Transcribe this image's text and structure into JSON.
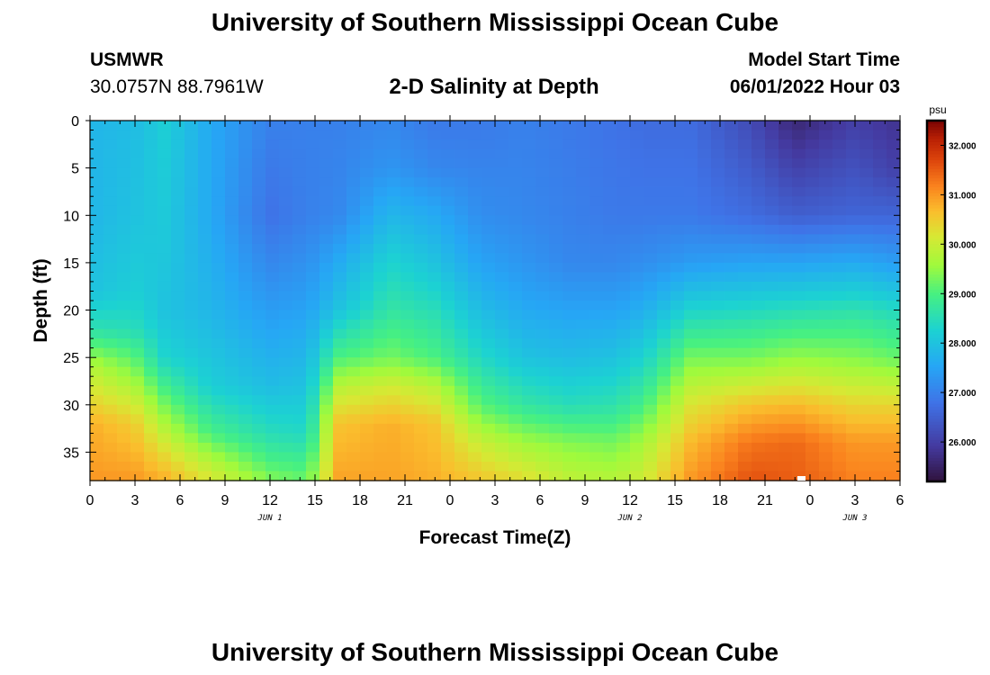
{
  "page": {
    "title": "University of Southern Mississippi Ocean Cube",
    "station": "USMWR",
    "coords": "30.0757N  88.7961W",
    "subtitle": "2-D Salinity at Depth",
    "model_label": "Model Start Time",
    "model_time": "06/01/2022 Hour 03",
    "footer_title": "University of Southern Mississippi Ocean Cube"
  },
  "chart_data": {
    "type": "heatmap",
    "title": "2-D Salinity at Depth",
    "xlabel": "Forecast Time(Z)",
    "ylabel": "Depth (ft)",
    "x_range_hours": [
      0,
      54
    ],
    "y_range": [
      0,
      38
    ],
    "y_inverted": true,
    "x_ticks": [
      {
        "h": 0,
        "label": "0"
      },
      {
        "h": 3,
        "label": "3"
      },
      {
        "h": 6,
        "label": "6"
      },
      {
        "h": 9,
        "label": "9"
      },
      {
        "h": 12,
        "label": "12"
      },
      {
        "h": 15,
        "label": "15"
      },
      {
        "h": 18,
        "label": "18"
      },
      {
        "h": 21,
        "label": "21"
      },
      {
        "h": 24,
        "label": "0"
      },
      {
        "h": 27,
        "label": "3"
      },
      {
        "h": 30,
        "label": "6"
      },
      {
        "h": 33,
        "label": "9"
      },
      {
        "h": 36,
        "label": "12"
      },
      {
        "h": 39,
        "label": "15"
      },
      {
        "h": 42,
        "label": "18"
      },
      {
        "h": 45,
        "label": "21"
      },
      {
        "h": 48,
        "label": "0"
      },
      {
        "h": 51,
        "label": "3"
      },
      {
        "h": 54,
        "label": "6"
      }
    ],
    "date_labels": [
      {
        "h": 12,
        "label": "JUN 1"
      },
      {
        "h": 36,
        "label": "JUN 2"
      },
      {
        "h": 51,
        "label": "JUN 3"
      }
    ],
    "y_ticks": [
      0,
      5,
      10,
      15,
      20,
      25,
      30,
      35
    ],
    "colorbar": {
      "unit": "psu",
      "range": [
        25.2,
        32.5
      ],
      "ticks": [
        26.0,
        27.0,
        28.0,
        29.0,
        30.0,
        31.0,
        32.0
      ],
      "tick_labels": [
        "26.000",
        "27.000",
        "28.000",
        "29.000",
        "30.000",
        "31.000",
        "32.000"
      ]
    },
    "grid_cols": 60,
    "grid_rows": 38,
    "salinity_profiles": [
      {
        "h": 0,
        "depths": [
          0,
          10,
          18,
          22,
          26,
          32,
          38
        ],
        "psu": [
          27.8,
          27.8,
          28.0,
          28.6,
          29.8,
          30.8,
          31.0
        ]
      },
      {
        "h": 3,
        "depths": [
          0,
          10,
          18,
          22,
          26,
          32,
          38
        ],
        "psu": [
          27.9,
          28.0,
          28.2,
          28.5,
          29.3,
          30.5,
          31.0
        ]
      },
      {
        "h": 5,
        "depths": [
          0,
          12,
          20,
          25,
          30,
          35,
          38
        ],
        "psu": [
          28.2,
          28.1,
          28.0,
          28.3,
          29.3,
          30.3,
          30.8
        ]
      },
      {
        "h": 8,
        "depths": [
          0,
          10,
          20,
          28,
          33,
          36,
          38
        ],
        "psu": [
          27.6,
          27.6,
          27.8,
          28.2,
          29.0,
          29.8,
          30.2
        ]
      },
      {
        "h": 12,
        "depths": [
          0,
          10,
          20,
          28,
          33,
          36,
          38
        ],
        "psu": [
          27.0,
          26.8,
          27.4,
          27.9,
          28.5,
          29.0,
          29.4
        ]
      },
      {
        "h": 14.5,
        "depths": [
          0,
          10,
          20,
          28,
          33,
          36,
          38
        ],
        "psu": [
          27.0,
          27.0,
          27.5,
          28.0,
          28.4,
          28.9,
          29.2
        ]
      },
      {
        "h": 16.5,
        "depths": [
          0,
          10,
          15,
          20,
          25,
          28,
          32,
          38
        ],
        "psu": [
          27.0,
          27.1,
          27.6,
          28.0,
          29.0,
          29.8,
          30.6,
          30.9
        ]
      },
      {
        "h": 20,
        "depths": [
          0,
          5,
          10,
          15,
          20,
          25,
          28,
          32,
          38
        ],
        "psu": [
          27.1,
          27.3,
          27.8,
          28.3,
          28.7,
          29.3,
          30.1,
          30.8,
          30.9
        ]
      },
      {
        "h": 23,
        "depths": [
          0,
          5,
          10,
          15,
          20,
          25,
          28,
          32,
          38
        ],
        "psu": [
          26.9,
          27.1,
          27.6,
          28.0,
          28.5,
          29.0,
          29.8,
          30.6,
          30.8
        ]
      },
      {
        "h": 26,
        "depths": [
          0,
          10,
          15,
          20,
          25,
          30,
          34,
          38
        ],
        "psu": [
          26.9,
          27.2,
          27.5,
          27.9,
          28.4,
          29.1,
          30.0,
          30.6
        ]
      },
      {
        "h": 29,
        "depths": [
          0,
          10,
          15,
          20,
          25,
          30,
          34,
          38
        ],
        "psu": [
          27.0,
          27.1,
          27.3,
          27.6,
          28.0,
          28.7,
          29.6,
          30.3
        ]
      },
      {
        "h": 32,
        "depths": [
          0,
          10,
          15,
          20,
          25,
          30,
          34,
          38
        ],
        "psu": [
          26.9,
          27.0,
          27.1,
          27.5,
          27.9,
          28.5,
          29.4,
          29.9
        ]
      },
      {
        "h": 35,
        "depths": [
          0,
          10,
          15,
          20,
          25,
          30,
          34,
          38
        ],
        "psu": [
          26.8,
          26.9,
          27.1,
          27.5,
          28.0,
          28.6,
          29.3,
          29.8
        ]
      },
      {
        "h": 37,
        "depths": [
          0,
          10,
          15,
          20,
          25,
          30,
          34,
          38
        ],
        "psu": [
          26.7,
          26.9,
          27.2,
          27.7,
          28.3,
          29.0,
          29.7,
          30.1
        ]
      },
      {
        "h": 40,
        "depths": [
          0,
          10,
          15,
          20,
          25,
          30,
          34,
          38
        ],
        "psu": [
          26.7,
          26.9,
          27.4,
          28.3,
          29.3,
          30.2,
          30.7,
          31.0
        ]
      },
      {
        "h": 44,
        "depths": [
          0,
          10,
          15,
          20,
          25,
          30,
          34,
          38
        ],
        "psu": [
          26.2,
          26.7,
          27.5,
          28.4,
          29.3,
          30.6,
          31.3,
          31.6
        ]
      },
      {
        "h": 47,
        "depths": [
          0,
          10,
          15,
          20,
          25,
          30,
          34,
          38
        ],
        "psu": [
          25.6,
          26.5,
          27.5,
          28.5,
          29.5,
          30.7,
          31.4,
          31.5
        ]
      },
      {
        "h": 51,
        "depths": [
          0,
          10,
          15,
          20,
          25,
          30,
          34,
          38
        ],
        "psu": [
          26.0,
          26.6,
          27.6,
          28.6,
          29.4,
          30.4,
          31.0,
          31.2
        ]
      },
      {
        "h": 54,
        "depths": [
          0,
          5,
          10,
          15,
          20,
          25,
          30,
          34,
          38
        ],
        "psu": [
          25.8,
          26.0,
          26.6,
          27.4,
          28.4,
          29.2,
          30.4,
          31.0,
          31.2
        ]
      }
    ]
  }
}
